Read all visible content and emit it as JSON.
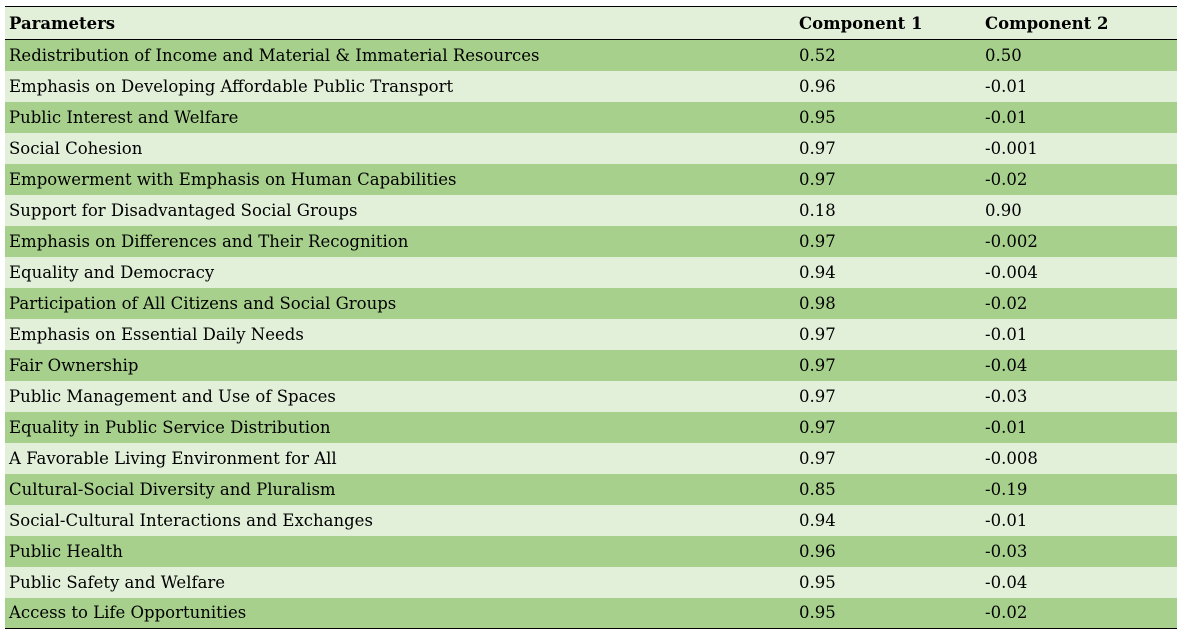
{
  "table": {
    "headers": [
      "Parameters",
      "Component 1",
      "Component 2"
    ],
    "rows": [
      [
        "Redistribution of Income and Material & Immaterial Resources",
        "0.52",
        "0.50"
      ],
      [
        "Emphasis on Developing Affordable Public Transport",
        "0.96",
        "-0.01"
      ],
      [
        "Public Interest and Welfare",
        "0.95",
        "-0.01"
      ],
      [
        "Social Cohesion",
        "0.97",
        "-0.001"
      ],
      [
        "Empowerment with Emphasis on Human Capabilities",
        "0.97",
        "-0.02"
      ],
      [
        "Support for Disadvantaged Social Groups",
        "0.18",
        "0.90"
      ],
      [
        "Emphasis on Differences and Their Recognition",
        "0.97",
        "-0.002"
      ],
      [
        "Equality and Democracy",
        "0.94",
        "-0.004"
      ],
      [
        "Participation of All Citizens and Social Groups",
        "0.98",
        "-0.02"
      ],
      [
        "Emphasis on Essential Daily Needs",
        "0.97",
        "-0.01"
      ],
      [
        "Fair Ownership",
        "0.97",
        "-0.04"
      ],
      [
        "Public Management and Use of Spaces",
        "0.97",
        "-0.03"
      ],
      [
        "Equality in Public Service Distribution",
        "0.97",
        "-0.01"
      ],
      [
        "A Favorable Living Environment for All",
        "0.97",
        "-0.008"
      ],
      [
        "Cultural-Social Diversity and Pluralism",
        "0.85",
        "-0.19"
      ],
      [
        "Social-Cultural Interactions and Exchanges",
        "0.94",
        "-0.01"
      ],
      [
        "Public Health",
        "0.96",
        "-0.03"
      ],
      [
        "Public Safety and Welfare",
        "0.95",
        "-0.04"
      ],
      [
        "Access to Life Opportunities",
        "0.95",
        "-0.02"
      ]
    ]
  },
  "colors": {
    "header_bg": "#e2efd9",
    "row_dark": "#a8d08d",
    "row_light": "#e2efd9",
    "text": "#000000"
  }
}
